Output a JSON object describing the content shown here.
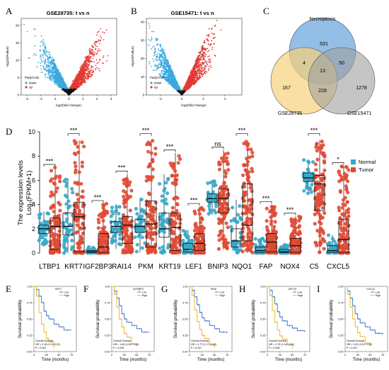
{
  "panels": {
    "A": {
      "letter": "A",
      "title": "GSE28735: t vs n",
      "xlabel": "log2(fold change)",
      "ylabel": "-log10(Pvalue)",
      "legend_title": "Padj<0.05",
      "legend_items": [
        "down",
        "up"
      ],
      "xticks": [
        "-3",
        "-2",
        "-1",
        "0",
        "1",
        "2",
        "3"
      ],
      "yticks": [
        "0",
        "5",
        "10",
        "15",
        "20"
      ]
    },
    "B": {
      "letter": "B",
      "title": "GSE15471: t vs n",
      "xlabel": "log2(fold change)",
      "ylabel": "-log10(Pvalue)",
      "legend_title": "Padj<0.05",
      "legend_items": [
        "down",
        "up"
      ],
      "xticks": [
        "-2",
        "0",
        "2",
        "4"
      ],
      "yticks": [
        "0",
        "10",
        "20",
        "30",
        "40"
      ]
    },
    "C": {
      "letter": "C",
      "sets": [
        "Necroptosis",
        "GSE28735",
        "GSE15471"
      ],
      "counts": {
        "necro_only": "531",
        "gse28735_only": "167",
        "gse15471_only": "1278",
        "necro_28735": "4",
        "necro_15471": "50",
        "g28735_15471": "228",
        "all": "13"
      }
    },
    "D": {
      "letter": "D",
      "ylabel_line1": "The expression levels",
      "ylabel_line2": "Log",
      "ylabel_sub": "2",
      "ylabel_tail": "(FPKM+1)",
      "yticks": [
        "0",
        "2",
        "4",
        "6",
        "8",
        "10"
      ],
      "legend": [
        "Normal",
        "Tumor"
      ]
    },
    "km": {
      "ylabel": "Survival probability",
      "xlabel": "Time (months)",
      "xticks": [
        "0",
        "25",
        "50",
        "75"
      ],
      "yticks": [
        "0.00",
        "0.25",
        "0.50",
        "0.75",
        "1.00"
      ],
      "legend": [
        "Low",
        "High"
      ],
      "stat_title": "Overall Survival",
      "plots": [
        {
          "letter": "E",
          "gene": "KRT7",
          "hr": "HR = 2.18 (1.43-3.32)",
          "p": "P = 0.001"
        },
        {
          "letter": "F",
          "gene": "IGF2BP3",
          "hr": "HR = 1.60 (1.05~2.45)",
          "p": "P = 0.029"
        },
        {
          "letter": "G",
          "gene": "PKM",
          "hr": "HR = 1.77 (1.17~2.68)",
          "p": "P = 0.007"
        },
        {
          "letter": "H",
          "gene": "KRT19",
          "hr": "HR = 1.75 (1.16~2.66)",
          "p": "P = 0.008"
        },
        {
          "letter": "I",
          "gene": "CXCL5",
          "hr": "HR = 1.52 (1.00~2.30)",
          "p": "P = 0.047"
        }
      ]
    }
  },
  "colors": {
    "down": "#3aa9dd",
    "up": "#e03a34",
    "normal": "#36a8c9",
    "tumor": "#e04a34",
    "km_low": "#2f6fc0",
    "km_high": "#e8b41f",
    "venn_necro": "#6fa8dc",
    "venn_28735": "#f6d27a",
    "venn_15471": "#9e9e9e"
  },
  "chart_data": [
    {
      "type": "scatter",
      "title": "GSE28735: t vs n",
      "xlabel": "log2(fold change)",
      "ylabel": "-log10(Pvalue)",
      "xlim": [
        -3.4,
        3.4
      ],
      "ylim": [
        0,
        22
      ],
      "series": [
        {
          "name": "down",
          "values": []
        },
        {
          "name": "up",
          "values": []
        }
      ]
    },
    {
      "type": "scatter",
      "title": "GSE15471: t vs n",
      "xlabel": "log2(fold change)",
      "ylabel": "-log10(Pvalue)",
      "xlim": [
        -3.3,
        5.6
      ],
      "ylim": [
        0,
        42
      ],
      "series": [
        {
          "name": "down",
          "values": []
        },
        {
          "name": "up",
          "values": []
        }
      ]
    },
    {
      "type": "box",
      "ylabel": "The expression levels Log2(FPKM+1)",
      "ylim": [
        0,
        10
      ],
      "categories": [
        "LTBP1",
        "KRT7",
        "IGF2BP3",
        "RAI14",
        "PKM",
        "KRT19",
        "LEF1",
        "BNIP3",
        "NQO1",
        "FAP",
        "NOX4",
        "C5",
        "CXCL5"
      ],
      "significance": [
        "***",
        "***",
        "***",
        "***",
        "***",
        "***",
        "***",
        "ns",
        "***",
        "***",
        "***",
        "***",
        "*"
      ],
      "series": [
        {
          "name": "Normal",
          "q1": [
            1.6,
            1.5,
            0.05,
            1.7,
            1.7,
            1.3,
            0.1,
            4.2,
            0.5,
            0.05,
            0.05,
            5.9,
            0.05
          ],
          "median": [
            2.0,
            2.2,
            0.1,
            2.2,
            2.2,
            2.0,
            0.3,
            4.5,
            1.0,
            0.2,
            0.1,
            6.2,
            0.2
          ],
          "q3": [
            2.3,
            3.3,
            0.2,
            2.6,
            2.8,
            3.3,
            0.8,
            4.9,
            2.0,
            0.5,
            0.3,
            6.6,
            0.6
          ]
        },
        {
          "name": "Tumor",
          "q1": [
            0.3,
            0.1,
            0.05,
            0.8,
            0.5,
            0.2,
            0.2,
            3.3,
            1.0,
            0.1,
            0.05,
            3.5,
            0.05
          ],
          "median": [
            2.2,
            3.0,
            0.5,
            2.3,
            2.4,
            2.1,
            0.8,
            4.5,
            2.3,
            0.9,
            0.6,
            5.7,
            1.1
          ],
          "q3": [
            2.9,
            4.2,
            1.6,
            3.0,
            4.3,
            3.3,
            1.6,
            5.3,
            5.7,
            1.6,
            1.2,
            6.4,
            2.8
          ]
        }
      ]
    },
    {
      "type": "line",
      "title": "KRT7",
      "xlabel": "Time (months)",
      "ylabel": "Survival probability",
      "xlim": [
        0,
        85
      ],
      "ylim": [
        0,
        1
      ],
      "series": [
        {
          "name": "Low",
          "x": [
            0,
            5,
            10,
            15,
            20,
            25,
            30,
            40,
            50,
            60,
            75
          ],
          "y": [
            1,
            0.95,
            0.85,
            0.75,
            0.62,
            0.55,
            0.5,
            0.42,
            0.38,
            0.33,
            0.33
          ]
        },
        {
          "name": "High",
          "x": [
            0,
            5,
            10,
            15,
            20,
            25,
            30,
            40
          ],
          "y": [
            1,
            0.85,
            0.6,
            0.42,
            0.3,
            0.2,
            0.15,
            0.05
          ]
        }
      ]
    },
    {
      "type": "line",
      "title": "IGF2BP3",
      "xlabel": "Time (months)",
      "ylabel": "Survival probability",
      "xlim": [
        0,
        85
      ],
      "ylim": [
        0,
        1
      ],
      "series": [
        {
          "name": "Low",
          "x": [
            0,
            5,
            10,
            15,
            20,
            25,
            30,
            40,
            50,
            60,
            75
          ],
          "y": [
            1,
            0.93,
            0.82,
            0.7,
            0.58,
            0.5,
            0.45,
            0.4,
            0.35,
            0.3,
            0.3
          ]
        },
        {
          "name": "High",
          "x": [
            0,
            5,
            10,
            15,
            20,
            25,
            30,
            40,
            50
          ],
          "y": [
            1,
            0.88,
            0.68,
            0.5,
            0.38,
            0.28,
            0.22,
            0.12,
            0.08
          ]
        }
      ]
    },
    {
      "type": "line",
      "title": "PKM",
      "xlabel": "Time (months)",
      "ylabel": "Survival probability",
      "xlim": [
        0,
        85
      ],
      "ylim": [
        0,
        1
      ],
      "series": [
        {
          "name": "Low",
          "x": [
            0,
            5,
            10,
            15,
            20,
            25,
            30,
            40,
            50,
            60,
            75
          ],
          "y": [
            1,
            0.94,
            0.84,
            0.72,
            0.6,
            0.52,
            0.47,
            0.4,
            0.35,
            0.3,
            0.28
          ]
        },
        {
          "name": "High",
          "x": [
            0,
            5,
            10,
            15,
            20,
            25,
            30,
            40,
            50
          ],
          "y": [
            1,
            0.86,
            0.64,
            0.46,
            0.34,
            0.25,
            0.2,
            0.1,
            0.06
          ]
        }
      ]
    },
    {
      "type": "line",
      "title": "KRT19",
      "xlabel": "Time (months)",
      "ylabel": "Survival probability",
      "xlim": [
        0,
        85
      ],
      "ylim": [
        0,
        1
      ],
      "series": [
        {
          "name": "Low",
          "x": [
            0,
            5,
            10,
            15,
            20,
            25,
            30,
            40,
            50,
            60,
            75
          ],
          "y": [
            1,
            0.94,
            0.84,
            0.73,
            0.61,
            0.53,
            0.47,
            0.4,
            0.36,
            0.32,
            0.3
          ]
        },
        {
          "name": "High",
          "x": [
            0,
            5,
            10,
            15,
            20,
            25,
            30,
            40,
            50
          ],
          "y": [
            1,
            0.86,
            0.63,
            0.45,
            0.33,
            0.24,
            0.19,
            0.1,
            0.05
          ]
        }
      ]
    },
    {
      "type": "line",
      "title": "CXCL5",
      "xlabel": "Time (months)",
      "ylabel": "Survival probability",
      "xlim": [
        0,
        85
      ],
      "ylim": [
        0,
        1
      ],
      "series": [
        {
          "name": "Low",
          "x": [
            0,
            5,
            10,
            15,
            20,
            25,
            30,
            40,
            50,
            60,
            75
          ],
          "y": [
            1,
            0.93,
            0.82,
            0.7,
            0.58,
            0.5,
            0.44,
            0.38,
            0.33,
            0.28,
            0.26
          ]
        },
        {
          "name": "High",
          "x": [
            0,
            5,
            10,
            15,
            20,
            25,
            30,
            40,
            50
          ],
          "y": [
            1,
            0.88,
            0.68,
            0.5,
            0.38,
            0.29,
            0.23,
            0.13,
            0.08
          ]
        }
      ]
    }
  ]
}
